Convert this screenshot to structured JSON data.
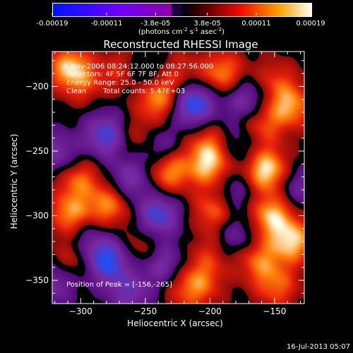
{
  "colorbar": {
    "ticks": [
      "-0.00019",
      "-0.00011",
      "-3.8e-05",
      "3.8e-05",
      "0.00011",
      "0.00019"
    ],
    "unit_text": "(photons cm",
    "unit_sup1": "-2",
    "unit_mid": " s",
    "unit_sup2": "-1",
    "unit_end": " asec",
    "unit_sup3": "-2",
    "unit_close": ")",
    "range": [
      -0.00019,
      0.00019
    ]
  },
  "annotations": {
    "time_range": "4-Nov-2006 08:24:12.000 to 08:27:56.000",
    "detectors": "Detectors: 4F 5F 6F 7F 8F, Att 0",
    "energy": "Energy Range: 25.0 - 50.0 keV",
    "clean": "Clean",
    "counts": "Total counts: 5.47E+03",
    "peak": "Position of Peak = [-156,-265]"
  },
  "footer": {
    "timestamp": "16-Jul-2013 05:07"
  },
  "chart_data": {
    "type": "heatmap",
    "title": "Reconstructed RHESSI Image",
    "xlabel": "Heliocentric X (arcsec)",
    "ylabel": "Heliocentric Y (arcsec)",
    "xlim": [
      -322,
      -127
    ],
    "ylim": [
      -368,
      -173
    ],
    "x_ticks": [
      -300,
      -250,
      -200,
      -150
    ],
    "y_ticks": [
      -200,
      -250,
      -300,
      -350
    ],
    "x_tick_labels": [
      "−300",
      "−250",
      "−200",
      "−150"
    ],
    "y_tick_labels": [
      "−200",
      "−250",
      "−300",
      "−350"
    ],
    "colormap": "red-temperature with blue negatives",
    "peak": [
      -156,
      -265
    ],
    "blobs": [
      {
        "x": -308,
        "y": -186,
        "v": 0.9
      },
      {
        "x": -292,
        "y": -205,
        "v": 0.75
      },
      {
        "x": -268,
        "y": -188,
        "v": 0.45
      },
      {
        "x": -240,
        "y": -208,
        "v": 0.85
      },
      {
        "x": -222,
        "y": -188,
        "v": 0.35
      },
      {
        "x": -190,
        "y": -190,
        "v": 0.7
      },
      {
        "x": -150,
        "y": -195,
        "v": 0.4
      },
      {
        "x": -138,
        "y": -215,
        "v": 0.75
      },
      {
        "x": -160,
        "y": -230,
        "v": 0.5
      },
      {
        "x": -256,
        "y": -240,
        "v": 0.45
      },
      {
        "x": -200,
        "y": -245,
        "v": 0.55
      },
      {
        "x": -156,
        "y": -265,
        "v": 1.0
      },
      {
        "x": -232,
        "y": -265,
        "v": 0.8
      },
      {
        "x": -200,
        "y": -262,
        "v": 0.75
      },
      {
        "x": -302,
        "y": -272,
        "v": 0.6
      },
      {
        "x": -308,
        "y": -300,
        "v": 0.75
      },
      {
        "x": -278,
        "y": -292,
        "v": 0.7
      },
      {
        "x": -196,
        "y": -296,
        "v": 0.65
      },
      {
        "x": -152,
        "y": -300,
        "v": 0.85
      },
      {
        "x": -136,
        "y": -320,
        "v": 0.85
      },
      {
        "x": -200,
        "y": -330,
        "v": 0.35
      },
      {
        "x": -162,
        "y": -335,
        "v": 0.6
      },
      {
        "x": -250,
        "y": -326,
        "v": 0.45
      },
      {
        "x": -208,
        "y": -352,
        "v": 0.55
      },
      {
        "x": -148,
        "y": -355,
        "v": 0.55
      },
      {
        "x": -305,
        "y": -332,
        "v": 0.5
      },
      {
        "x": -290,
        "y": -208,
        "v": -0.55
      },
      {
        "x": -252,
        "y": -192,
        "v": -0.45
      },
      {
        "x": -213,
        "y": -213,
        "v": -1.0
      },
      {
        "x": -172,
        "y": -210,
        "v": -0.6
      },
      {
        "x": -280,
        "y": -238,
        "v": -0.8
      },
      {
        "x": -240,
        "y": -248,
        "v": -0.55
      },
      {
        "x": -180,
        "y": -245,
        "v": -0.4
      },
      {
        "x": -318,
        "y": -252,
        "v": -0.55
      },
      {
        "x": -262,
        "y": -272,
        "v": -0.6
      },
      {
        "x": -182,
        "y": -282,
        "v": -0.45
      },
      {
        "x": -240,
        "y": -300,
        "v": -0.8
      },
      {
        "x": -298,
        "y": -318,
        "v": -0.5
      },
      {
        "x": -280,
        "y": -335,
        "v": -0.95
      },
      {
        "x": -238,
        "y": -336,
        "v": -0.65
      },
      {
        "x": -262,
        "y": -360,
        "v": -0.55
      },
      {
        "x": -180,
        "y": -315,
        "v": -0.45
      },
      {
        "x": -320,
        "y": -352,
        "v": -0.5
      },
      {
        "x": -132,
        "y": -278,
        "v": -0.45
      },
      {
        "x": -220,
        "y": -360,
        "v": 0.3
      }
    ]
  }
}
